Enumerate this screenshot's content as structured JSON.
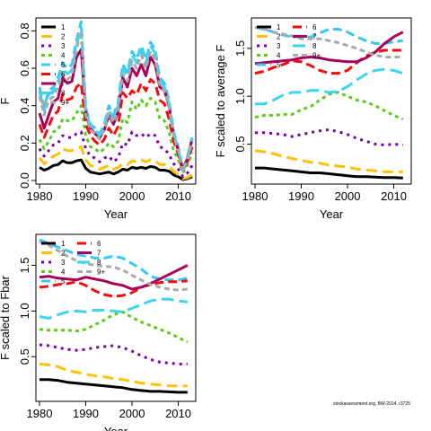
{
  "credit": "stockassessment.org, BW-2014, r3725",
  "age_colors": [
    "#000000",
    "#FFC107",
    "#7B00B0",
    "#5BCB1E",
    "#37C7F2",
    "#F50B0B",
    "#A8005B",
    "#3FD3F2",
    "#A9A9A9"
  ],
  "chart_data": [
    {
      "type": "line",
      "title": "",
      "xlabel": "Year",
      "ylabel": "F",
      "xlim": [
        1980,
        2013
      ],
      "ylim": [
        0,
        0.85
      ],
      "xticks": [
        1980,
        1990,
        2000,
        2010
      ],
      "yticks": [
        0.0,
        0.2,
        0.4,
        0.6,
        0.8
      ],
      "ytick_labels": [
        "0.0",
        "0.2",
        "0.4",
        "0.6",
        "0.8"
      ],
      "legend": "top-left",
      "x": [
        1980,
        1981,
        1982,
        1983,
        1984,
        1985,
        1986,
        1987,
        1988,
        1989,
        1990,
        1991,
        1992,
        1993,
        1994,
        1995,
        1996,
        1997,
        1998,
        1999,
        2000,
        2001,
        2002,
        2003,
        2004,
        2005,
        2006,
        2007,
        2008,
        2009,
        2010,
        2011,
        2012,
        2013
      ],
      "series": [
        {
          "name": "1",
          "values": [
            0.07,
            0.055,
            0.065,
            0.08,
            0.085,
            0.105,
            0.095,
            0.095,
            0.105,
            0.11,
            0.065,
            0.045,
            0.04,
            0.035,
            0.04,
            0.045,
            0.035,
            0.045,
            0.06,
            0.055,
            0.07,
            0.065,
            0.07,
            0.065,
            0.075,
            0.07,
            0.055,
            0.055,
            0.05,
            0.03,
            0.02,
            0.005,
            0.01,
            0.02
          ]
        },
        {
          "name": "2",
          "values": [
            0.12,
            0.09,
            0.11,
            0.13,
            0.14,
            0.17,
            0.16,
            0.16,
            0.17,
            0.18,
            0.11,
            0.08,
            0.07,
            0.06,
            0.07,
            0.08,
            0.06,
            0.07,
            0.09,
            0.085,
            0.105,
            0.1,
            0.11,
            0.1,
            0.11,
            0.105,
            0.085,
            0.085,
            0.075,
            0.05,
            0.03,
            0.01,
            0.015,
            0.03
          ]
        },
        {
          "name": "3",
          "values": [
            0.17,
            0.13,
            0.16,
            0.19,
            0.2,
            0.24,
            0.23,
            0.23,
            0.25,
            0.26,
            0.17,
            0.13,
            0.12,
            0.1,
            0.12,
            0.13,
            0.1,
            0.12,
            0.2,
            0.19,
            0.26,
            0.24,
            0.25,
            0.23,
            0.25,
            0.24,
            0.18,
            0.17,
            0.14,
            0.09,
            0.06,
            0.02,
            0.04,
            0.08
          ]
        },
        {
          "name": "4",
          "values": [
            0.22,
            0.17,
            0.21,
            0.26,
            0.27,
            0.33,
            0.32,
            0.32,
            0.36,
            0.4,
            0.24,
            0.18,
            0.17,
            0.15,
            0.17,
            0.2,
            0.18,
            0.21,
            0.33,
            0.31,
            0.42,
            0.38,
            0.43,
            0.4,
            0.44,
            0.42,
            0.33,
            0.32,
            0.26,
            0.16,
            0.11,
            0.04,
            0.08,
            0.15
          ]
        },
        {
          "name": "5",
          "values": [
            0.5,
            0.39,
            0.48,
            0.5,
            0.55,
            0.63,
            0.6,
            0.62,
            0.75,
            0.85,
            0.39,
            0.3,
            0.28,
            0.25,
            0.3,
            0.4,
            0.35,
            0.42,
            0.62,
            0.58,
            0.69,
            0.65,
            0.72,
            0.65,
            0.74,
            0.7,
            0.55,
            0.52,
            0.43,
            0.26,
            0.18,
            0.06,
            0.13,
            0.23
          ]
        },
        {
          "name": "6",
          "values": [
            0.3,
            0.23,
            0.29,
            0.35,
            0.37,
            0.46,
            0.43,
            0.44,
            0.5,
            0.52,
            0.3,
            0.24,
            0.21,
            0.19,
            0.22,
            0.28,
            0.24,
            0.29,
            0.47,
            0.44,
            0.48,
            0.46,
            0.52,
            0.48,
            0.54,
            0.52,
            0.43,
            0.41,
            0.33,
            0.21,
            0.14,
            0.05,
            0.1,
            0.18
          ]
        },
        {
          "name": "7",
          "values": [
            0.36,
            0.28,
            0.35,
            0.42,
            0.44,
            0.55,
            0.52,
            0.53,
            0.66,
            0.7,
            0.36,
            0.28,
            0.25,
            0.23,
            0.27,
            0.35,
            0.3,
            0.37,
            0.55,
            0.5,
            0.6,
            0.56,
            0.62,
            0.56,
            0.66,
            0.62,
            0.5,
            0.48,
            0.4,
            0.24,
            0.16,
            0.05,
            0.12,
            0.22
          ]
        },
        {
          "name": "8",
          "values": [
            0.48,
            0.37,
            0.46,
            0.48,
            0.53,
            0.6,
            0.57,
            0.59,
            0.72,
            0.82,
            0.37,
            0.29,
            0.27,
            0.24,
            0.29,
            0.38,
            0.33,
            0.4,
            0.6,
            0.56,
            0.67,
            0.63,
            0.7,
            0.63,
            0.72,
            0.68,
            0.53,
            0.5,
            0.41,
            0.25,
            0.17,
            0.05,
            0.12,
            0.22
          ]
        },
        {
          "name": "9+",
          "values": [
            0.45,
            0.35,
            0.43,
            0.45,
            0.5,
            0.57,
            0.54,
            0.56,
            0.7,
            0.8,
            0.35,
            0.27,
            0.25,
            0.22,
            0.27,
            0.36,
            0.31,
            0.38,
            0.57,
            0.53,
            0.64,
            0.6,
            0.67,
            0.6,
            0.69,
            0.65,
            0.51,
            0.48,
            0.39,
            0.24,
            0.16,
            0.05,
            0.11,
            0.21
          ]
        }
      ]
    },
    {
      "type": "line",
      "title": "",
      "xlabel": "Year",
      "ylabel": "F scaled to average F",
      "xlim": [
        1980,
        2013
      ],
      "ylim": [
        0.12,
        1.78
      ],
      "xticks": [
        1980,
        1990,
        2000,
        2010
      ],
      "yticks": [
        0.5,
        1.0,
        1.5
      ],
      "ytick_labels": [
        "0.5",
        "1.0",
        "1.5"
      ],
      "legend": "top-left",
      "x": [
        1980,
        1982,
        1984,
        1986,
        1988,
        1990,
        1992,
        1994,
        1996,
        1998,
        2000,
        2002,
        2004,
        2006,
        2008,
        2010,
        2012
      ],
      "series": [
        {
          "name": "1",
          "values": [
            0.25,
            0.25,
            0.24,
            0.23,
            0.22,
            0.21,
            0.2,
            0.2,
            0.19,
            0.18,
            0.17,
            0.16,
            0.16,
            0.155,
            0.15,
            0.15,
            0.145
          ]
        },
        {
          "name": "2",
          "values": [
            0.43,
            0.42,
            0.4,
            0.37,
            0.35,
            0.33,
            0.31,
            0.3,
            0.28,
            0.27,
            0.26,
            0.24,
            0.23,
            0.22,
            0.21,
            0.21,
            0.21
          ]
        },
        {
          "name": "3",
          "values": [
            0.62,
            0.62,
            0.61,
            0.6,
            0.58,
            0.6,
            0.62,
            0.64,
            0.65,
            0.63,
            0.6,
            0.56,
            0.53,
            0.5,
            0.49,
            0.5,
            0.49
          ]
        },
        {
          "name": "4",
          "values": [
            0.78,
            0.8,
            0.8,
            0.81,
            0.81,
            0.86,
            0.89,
            0.96,
            1.02,
            1.04,
            1.0,
            0.96,
            0.94,
            0.9,
            0.85,
            0.8,
            0.76
          ]
        },
        {
          "name": "5",
          "values": [
            1.72,
            1.7,
            1.67,
            1.64,
            1.62,
            1.62,
            1.62,
            1.66,
            1.7,
            1.7,
            1.67,
            1.62,
            1.58,
            1.55,
            1.55,
            1.57,
            1.58
          ]
        },
        {
          "name": "6",
          "values": [
            1.24,
            1.26,
            1.3,
            1.33,
            1.37,
            1.36,
            1.32,
            1.27,
            1.24,
            1.24,
            1.27,
            1.35,
            1.42,
            1.46,
            1.48,
            1.48,
            1.48
          ]
        },
        {
          "name": "7",
          "values": [
            1.34,
            1.35,
            1.36,
            1.37,
            1.38,
            1.4,
            1.41,
            1.4,
            1.38,
            1.37,
            1.36,
            1.36,
            1.4,
            1.46,
            1.55,
            1.62,
            1.67
          ]
        },
        {
          "name": "8",
          "values": [
            0.92,
            0.92,
            0.96,
            1.01,
            1.04,
            1.04,
            1.06,
            1.06,
            1.04,
            1.05,
            1.1,
            1.17,
            1.23,
            1.27,
            1.28,
            1.27,
            1.24
          ]
        },
        {
          "name": "9+",
          "values": [
            1.72,
            1.7,
            1.67,
            1.65,
            1.63,
            1.6,
            1.6,
            1.6,
            1.58,
            1.56,
            1.53,
            1.5,
            1.46,
            1.43,
            1.41,
            1.41,
            1.41
          ]
        }
      ]
    },
    {
      "type": "line",
      "title": "",
      "xlabel": "Year",
      "ylabel": "F scaled to Fbar",
      "xlim": [
        1980,
        2013
      ],
      "ylim": [
        0.05,
        1.8
      ],
      "xticks": [
        1980,
        1990,
        2000,
        2010
      ],
      "yticks": [
        0.5,
        1.0,
        1.5
      ],
      "ytick_labels": [
        "0.5",
        "1.0",
        "1.5"
      ],
      "legend": "top-left",
      "x": [
        1980,
        1982,
        1984,
        1986,
        1988,
        1990,
        1992,
        1994,
        1996,
        1998,
        2000,
        2002,
        2004,
        2006,
        2008,
        2010,
        2012
      ],
      "series": [
        {
          "name": "1",
          "values": [
            0.25,
            0.25,
            0.24,
            0.22,
            0.21,
            0.2,
            0.19,
            0.18,
            0.17,
            0.16,
            0.14,
            0.13,
            0.12,
            0.12,
            0.115,
            0.11,
            0.11
          ]
        },
        {
          "name": "2",
          "values": [
            0.42,
            0.41,
            0.39,
            0.35,
            0.33,
            0.31,
            0.29,
            0.28,
            0.26,
            0.25,
            0.23,
            0.21,
            0.2,
            0.19,
            0.18,
            0.18,
            0.18
          ]
        },
        {
          "name": "3",
          "values": [
            0.63,
            0.62,
            0.6,
            0.58,
            0.57,
            0.58,
            0.6,
            0.61,
            0.62,
            0.6,
            0.56,
            0.51,
            0.47,
            0.44,
            0.43,
            0.42,
            0.42
          ]
        },
        {
          "name": "4",
          "values": [
            0.8,
            0.79,
            0.79,
            0.79,
            0.78,
            0.8,
            0.85,
            0.9,
            0.96,
            0.99,
            0.93,
            0.88,
            0.84,
            0.8,
            0.76,
            0.71,
            0.66
          ]
        },
        {
          "name": "5",
          "values": [
            1.78,
            1.74,
            1.7,
            1.66,
            1.62,
            1.6,
            1.58,
            1.58,
            1.6,
            1.58,
            1.52,
            1.46,
            1.38,
            1.35,
            1.34,
            1.34,
            1.36
          ]
        },
        {
          "name": "6",
          "values": [
            1.26,
            1.27,
            1.29,
            1.3,
            1.32,
            1.28,
            1.22,
            1.18,
            1.16,
            1.17,
            1.2,
            1.26,
            1.29,
            1.31,
            1.32,
            1.32,
            1.33
          ]
        },
        {
          "name": "7",
          "values": [
            1.37,
            1.38,
            1.36,
            1.35,
            1.34,
            1.37,
            1.35,
            1.33,
            1.3,
            1.28,
            1.24,
            1.26,
            1.3,
            1.35,
            1.4,
            1.45,
            1.5
          ]
        },
        {
          "name": "8",
          "values": [
            0.94,
            0.92,
            0.96,
            0.99,
            1.0,
            0.99,
            1.01,
            1.01,
            1.0,
            0.99,
            1.03,
            1.07,
            1.11,
            1.13,
            1.13,
            1.11,
            1.1
          ]
        },
        {
          "name": "9+",
          "values": [
            1.76,
            1.72,
            1.66,
            1.6,
            1.55,
            1.52,
            1.5,
            1.49,
            1.48,
            1.45,
            1.39,
            1.34,
            1.29,
            1.26,
            1.24,
            1.23,
            1.24
          ]
        }
      ]
    }
  ]
}
